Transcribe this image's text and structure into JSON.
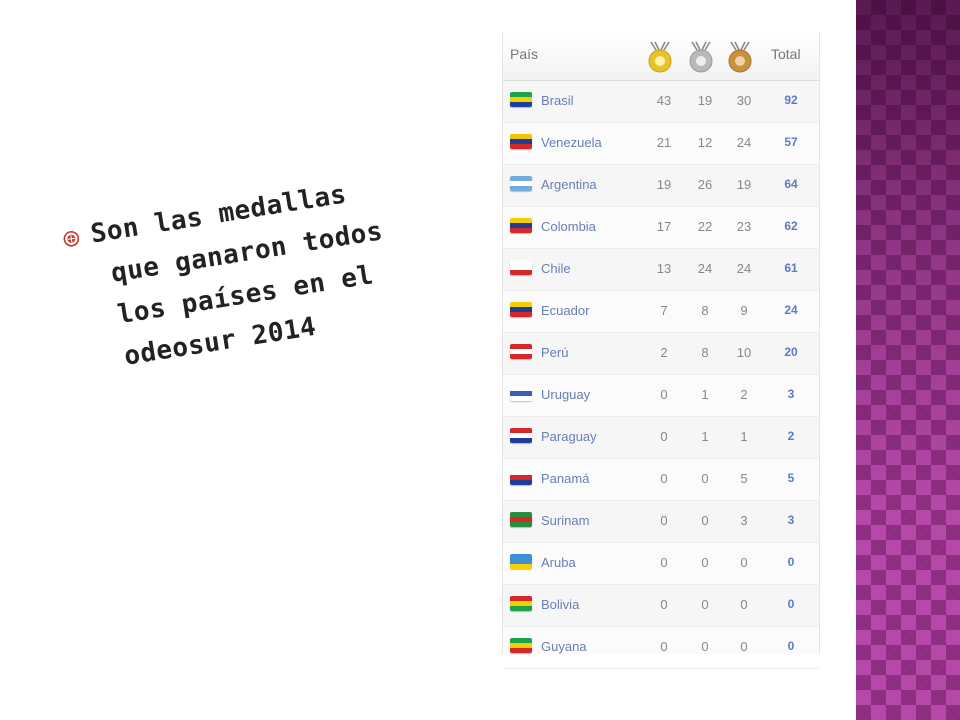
{
  "slide": {
    "bullet_lines": [
      "Son las medallas",
      "que ganaron todos",
      "los países en el",
      "odeosur 2014"
    ]
  },
  "medal_table": {
    "header": {
      "country": "País",
      "total": "Total"
    },
    "rows": [
      {
        "country": "Brasil",
        "gold": "43",
        "silver": "19",
        "bronze": "30",
        "total": "92",
        "flag": [
          "#1aa34a",
          "#f5d000",
          "#1b3f9a"
        ]
      },
      {
        "country": "Venezuela",
        "gold": "21",
        "silver": "12",
        "bronze": "24",
        "total": "57",
        "flag": [
          "#f2c500",
          "#1e3d9a",
          "#d62828"
        ]
      },
      {
        "country": "Argentina",
        "gold": "19",
        "silver": "26",
        "bronze": "19",
        "total": "64",
        "flag": [
          "#74acdf",
          "#ffffff",
          "#74acdf"
        ]
      },
      {
        "country": "Colombia",
        "gold": "17",
        "silver": "22",
        "bronze": "23",
        "total": "62",
        "flag": [
          "#f5d000",
          "#1e3d9a",
          "#d62828"
        ]
      },
      {
        "country": "Chile",
        "gold": "13",
        "silver": "24",
        "bronze": "24",
        "total": "61",
        "flag": [
          "#ffffff",
          "#ffffff",
          "#d62828"
        ]
      },
      {
        "country": "Ecuador",
        "gold": "7",
        "silver": "8",
        "bronze": "9",
        "total": "24",
        "flag": [
          "#f5d000",
          "#1e3d9a",
          "#d62828"
        ]
      },
      {
        "country": "Perú",
        "gold": "2",
        "silver": "8",
        "bronze": "10",
        "total": "20",
        "flag": [
          "#d62828",
          "#ffffff",
          "#d62828"
        ]
      },
      {
        "country": "Uruguay",
        "gold": "0",
        "silver": "1",
        "bronze": "2",
        "total": "3",
        "flag": [
          "#ffffff",
          "#3a5fb0",
          "#ffffff"
        ]
      },
      {
        "country": "Paraguay",
        "gold": "0",
        "silver": "1",
        "bronze": "1",
        "total": "2",
        "flag": [
          "#d62828",
          "#ffffff",
          "#1e3d9a"
        ]
      },
      {
        "country": "Panamá",
        "gold": "0",
        "silver": "0",
        "bronze": "5",
        "total": "5",
        "flag": [
          "#ffffff",
          "#d62828",
          "#1e3d9a"
        ]
      },
      {
        "country": "Surinam",
        "gold": "0",
        "silver": "0",
        "bronze": "3",
        "total": "3",
        "flag": [
          "#2a8a3e",
          "#d62828",
          "#2a8a3e"
        ]
      },
      {
        "country": "Aruba",
        "gold": "0",
        "silver": "0",
        "bronze": "0",
        "total": "0",
        "flag": [
          "#3d8fd8",
          "#3d8fd8",
          "#f5d000"
        ]
      },
      {
        "country": "Bolivia",
        "gold": "0",
        "silver": "0",
        "bronze": "0",
        "total": "0",
        "flag": [
          "#d62828",
          "#f5d000",
          "#1aa34a"
        ]
      },
      {
        "country": "Guyana",
        "gold": "0",
        "silver": "0",
        "bronze": "0",
        "total": "0",
        "flag": [
          "#1aa34a",
          "#f5d000",
          "#d62828"
        ]
      }
    ]
  },
  "colors": {
    "band": "#b548a8",
    "country_link": "#6a7eb4",
    "total": "#5a7bc9",
    "gold": "#e9c22b",
    "silver": "#b9b9b9",
    "bronze": "#c8913f"
  }
}
